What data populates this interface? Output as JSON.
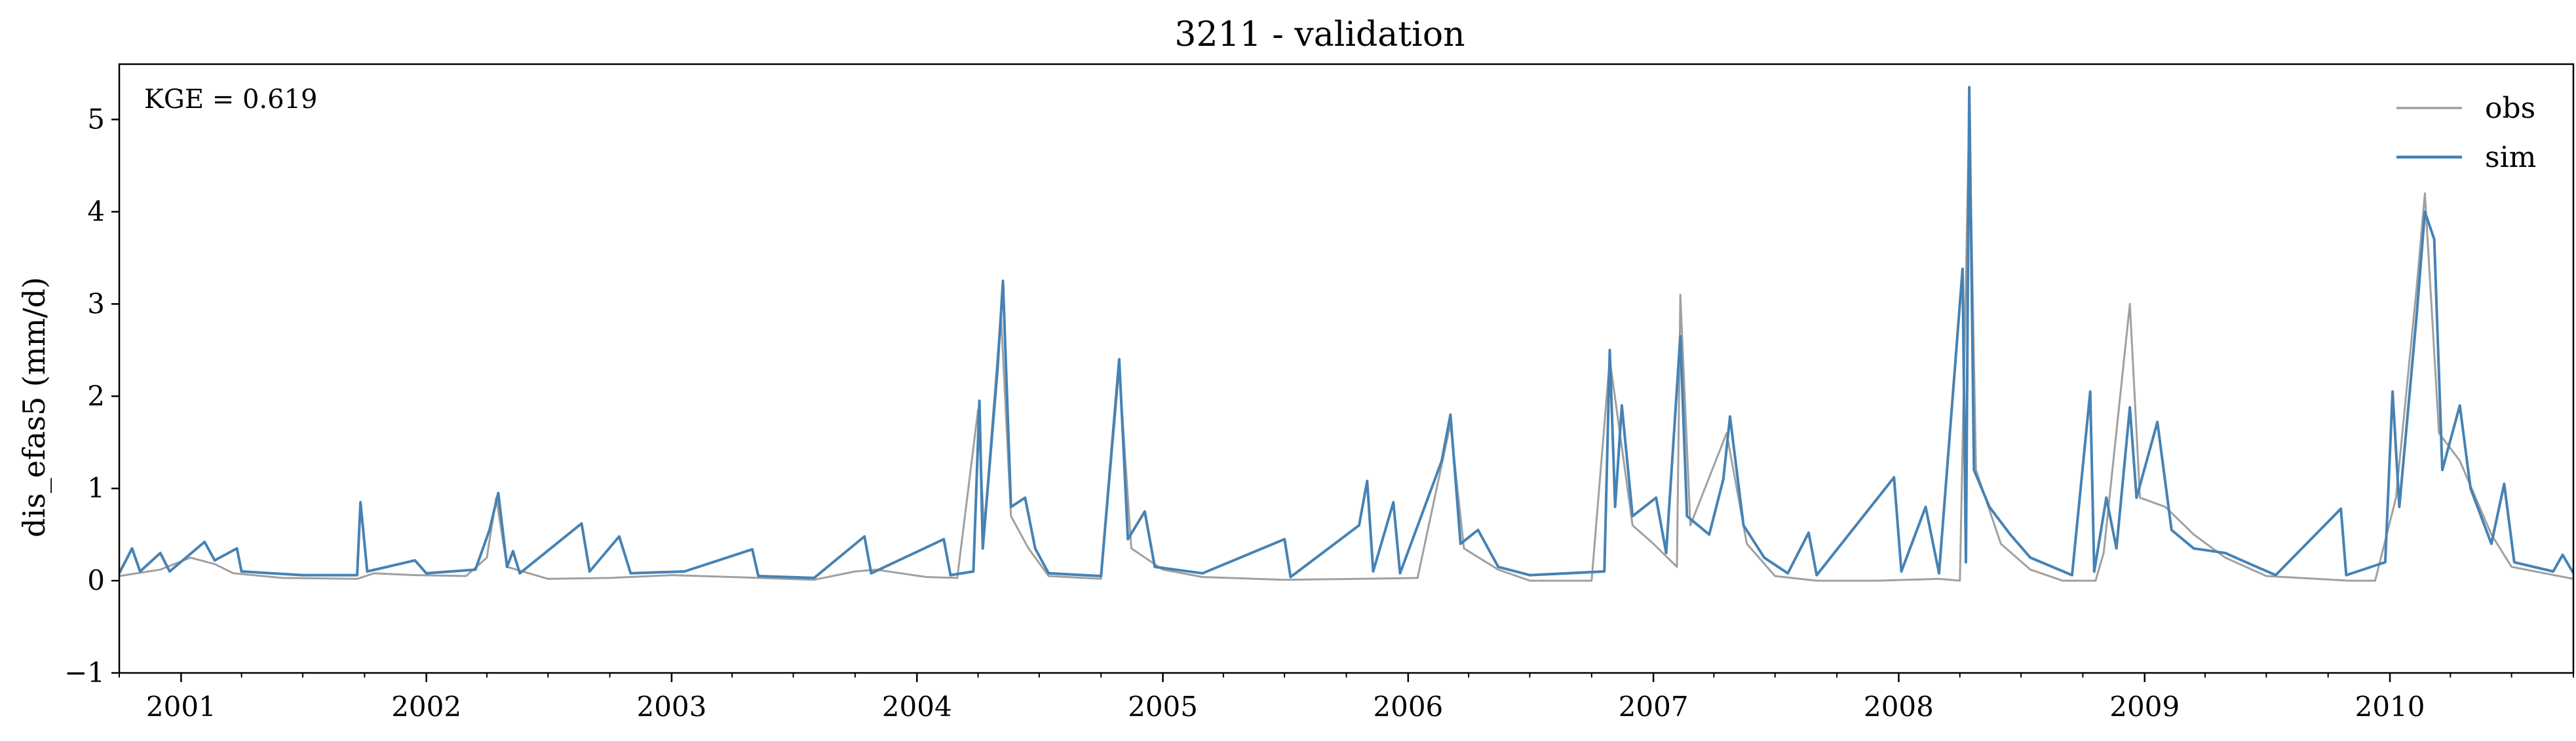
{
  "chart_data": {
    "type": "line",
    "title": "3211 - validation",
    "ylabel": "dis_efas5 (mm/d)",
    "xlabel": "",
    "annotation": "KGE = 0.619",
    "xlim": [
      "2000-10-01",
      "2010-10-01"
    ],
    "ylim": [
      -1,
      5.6
    ],
    "yticks": [
      -1,
      0,
      1,
      2,
      3,
      4,
      5
    ],
    "ytick_labels": [
      "−1",
      "0",
      "1",
      "2",
      "3",
      "4",
      "5"
    ],
    "xtick_labels": [
      "2001",
      "2002",
      "2003",
      "2004",
      "2005",
      "2006",
      "2007",
      "2008",
      "2009",
      "2010"
    ],
    "xtick_dates": [
      "2001-01-01",
      "2002-01-01",
      "2003-01-01",
      "2004-01-01",
      "2005-01-01",
      "2006-01-01",
      "2007-01-01",
      "2008-01-01",
      "2009-01-01",
      "2010-01-01"
    ],
    "grid": false,
    "legend": "top-right",
    "series": [
      {
        "name": "obs",
        "color": "#a0a0a0",
        "points": [
          [
            "2000-10-01",
            0.05
          ],
          [
            "2000-12-01",
            0.12
          ],
          [
            "2001-01-15",
            0.25
          ],
          [
            "2001-02-20",
            0.18
          ],
          [
            "2001-03-20",
            0.08
          ],
          [
            "2001-06-01",
            0.03
          ],
          [
            "2001-09-20",
            0.02
          ],
          [
            "2001-10-15",
            0.08
          ],
          [
            "2001-12-15",
            0.06
          ],
          [
            "2002-03-01",
            0.05
          ],
          [
            "2002-04-01",
            0.25
          ],
          [
            "2002-04-15",
            0.9
          ],
          [
            "2002-05-01",
            0.15
          ],
          [
            "2002-07-01",
            0.02
          ],
          [
            "2002-10-01",
            0.03
          ],
          [
            "2003-01-01",
            0.06
          ],
          [
            "2003-04-01",
            0.04
          ],
          [
            "2003-08-01",
            0.01
          ],
          [
            "2003-10-01",
            0.1
          ],
          [
            "2003-11-01",
            0.12
          ],
          [
            "2004-01-15",
            0.04
          ],
          [
            "2004-03-01",
            0.03
          ],
          [
            "2004-04-01",
            1.85
          ],
          [
            "2004-04-10",
            0.55
          ],
          [
            "2004-05-05",
            2.9
          ],
          [
            "2004-05-20",
            0.7
          ],
          [
            "2004-06-15",
            0.35
          ],
          [
            "2004-07-15",
            0.05
          ],
          [
            "2004-10-01",
            0.02
          ],
          [
            "2004-10-28",
            2.3
          ],
          [
            "2004-11-15",
            0.35
          ],
          [
            "2005-01-01",
            0.12
          ],
          [
            "2005-03-01",
            0.04
          ],
          [
            "2005-07-01",
            0.01
          ],
          [
            "2005-10-20",
            0.02
          ],
          [
            "2006-01-15",
            0.03
          ],
          [
            "2006-03-05",
            1.7
          ],
          [
            "2006-03-25",
            0.35
          ],
          [
            "2006-05-15",
            0.12
          ],
          [
            "2006-07-01",
            0.0
          ],
          [
            "2006-10-01",
            0.0
          ],
          [
            "2006-10-28",
            2.4
          ],
          [
            "2006-12-01",
            0.6
          ],
          [
            "2007-01-01",
            0.4
          ],
          [
            "2007-02-05",
            0.15
          ],
          [
            "2007-02-10",
            3.1
          ],
          [
            "2007-02-25",
            0.6
          ],
          [
            "2007-04-20",
            1.6
          ],
          [
            "2007-05-20",
            0.4
          ],
          [
            "2007-07-01",
            0.05
          ],
          [
            "2007-09-01",
            0.0
          ],
          [
            "2007-12-01",
            0.0
          ],
          [
            "2008-03-01",
            0.02
          ],
          [
            "2008-04-01",
            0.0
          ],
          [
            "2008-04-15",
            5.1
          ],
          [
            "2008-04-25",
            1.2
          ],
          [
            "2008-06-01",
            0.4
          ],
          [
            "2008-07-15",
            0.12
          ],
          [
            "2008-09-01",
            0.0
          ],
          [
            "2008-10-20",
            0.0
          ],
          [
            "2008-11-01",
            0.3
          ],
          [
            "2008-12-10",
            3.0
          ],
          [
            "2008-12-25",
            0.9
          ],
          [
            "2009-02-01",
            0.8
          ],
          [
            "2009-03-15",
            0.5
          ],
          [
            "2009-05-01",
            0.25
          ],
          [
            "2009-07-01",
            0.05
          ],
          [
            "2009-11-01",
            0.0
          ],
          [
            "2009-12-10",
            0.0
          ],
          [
            "2010-01-10",
            0.9
          ],
          [
            "2010-02-10",
            3.2
          ],
          [
            "2010-02-22",
            4.2
          ],
          [
            "2010-03-15",
            1.6
          ],
          [
            "2010-04-15",
            1.3
          ],
          [
            "2010-06-01",
            0.5
          ],
          [
            "2010-07-01",
            0.15
          ],
          [
            "2010-10-01",
            0.02
          ]
        ]
      },
      {
        "name": "sim",
        "color": "#4682b4",
        "points": [
          [
            "2000-10-01",
            0.08
          ],
          [
            "2000-10-20",
            0.35
          ],
          [
            "2000-11-01",
            0.1
          ],
          [
            "2000-12-01",
            0.3
          ],
          [
            "2000-12-15",
            0.1
          ],
          [
            "2001-02-05",
            0.42
          ],
          [
            "2001-02-20",
            0.22
          ],
          [
            "2001-03-25",
            0.35
          ],
          [
            "2001-04-01",
            0.1
          ],
          [
            "2001-07-01",
            0.06
          ],
          [
            "2001-09-20",
            0.06
          ],
          [
            "2001-09-25",
            0.85
          ],
          [
            "2001-10-05",
            0.1
          ],
          [
            "2001-12-15",
            0.22
          ],
          [
            "2002-01-01",
            0.08
          ],
          [
            "2002-03-15",
            0.12
          ],
          [
            "2002-04-05",
            0.55
          ],
          [
            "2002-04-18",
            0.95
          ],
          [
            "2002-05-01",
            0.15
          ],
          [
            "2002-05-10",
            0.32
          ],
          [
            "2002-05-20",
            0.08
          ],
          [
            "2002-08-20",
            0.62
          ],
          [
            "2002-09-01",
            0.1
          ],
          [
            "2002-10-15",
            0.48
          ],
          [
            "2002-11-01",
            0.08
          ],
          [
            "2003-01-20",
            0.1
          ],
          [
            "2003-05-01",
            0.34
          ],
          [
            "2003-05-10",
            0.05
          ],
          [
            "2003-08-01",
            0.03
          ],
          [
            "2003-10-15",
            0.48
          ],
          [
            "2003-10-25",
            0.08
          ],
          [
            "2004-02-10",
            0.45
          ],
          [
            "2004-02-20",
            0.06
          ],
          [
            "2004-03-25",
            0.1
          ],
          [
            "2004-04-03",
            1.95
          ],
          [
            "2004-04-08",
            0.35
          ],
          [
            "2004-04-30",
            2.3
          ],
          [
            "2004-05-08",
            3.25
          ],
          [
            "2004-05-20",
            0.8
          ],
          [
            "2004-06-10",
            0.9
          ],
          [
            "2004-06-25",
            0.35
          ],
          [
            "2004-07-15",
            0.08
          ],
          [
            "2004-10-01",
            0.05
          ],
          [
            "2004-10-28",
            2.4
          ],
          [
            "2004-11-10",
            0.45
          ],
          [
            "2004-12-05",
            0.75
          ],
          [
            "2004-12-20",
            0.15
          ],
          [
            "2005-03-01",
            0.08
          ],
          [
            "2005-07-01",
            0.45
          ],
          [
            "2005-07-10",
            0.04
          ],
          [
            "2005-10-20",
            0.6
          ],
          [
            "2005-11-01",
            1.08
          ],
          [
            "2005-11-10",
            0.1
          ],
          [
            "2005-12-10",
            0.85
          ],
          [
            "2005-12-20",
            0.08
          ],
          [
            "2006-02-20",
            1.3
          ],
          [
            "2006-03-05",
            1.8
          ],
          [
            "2006-03-20",
            0.4
          ],
          [
            "2006-04-15",
            0.55
          ],
          [
            "2006-05-15",
            0.15
          ],
          [
            "2006-07-01",
            0.06
          ],
          [
            "2006-10-20",
            0.1
          ],
          [
            "2006-10-28",
            2.5
          ],
          [
            "2006-11-05",
            0.8
          ],
          [
            "2006-11-15",
            1.9
          ],
          [
            "2006-12-01",
            0.7
          ],
          [
            "2007-01-05",
            0.9
          ],
          [
            "2007-01-20",
            0.3
          ],
          [
            "2007-02-10",
            2.65
          ],
          [
            "2007-02-20",
            0.7
          ],
          [
            "2007-03-25",
            0.5
          ],
          [
            "2007-04-15",
            1.1
          ],
          [
            "2007-04-25",
            1.78
          ],
          [
            "2007-05-15",
            0.6
          ],
          [
            "2007-06-15",
            0.25
          ],
          [
            "2007-07-20",
            0.08
          ],
          [
            "2007-08-20",
            0.52
          ],
          [
            "2007-09-01",
            0.06
          ],
          [
            "2007-12-25",
            1.12
          ],
          [
            "2008-01-05",
            0.1
          ],
          [
            "2008-02-10",
            0.8
          ],
          [
            "2008-03-01",
            0.08
          ],
          [
            "2008-04-05",
            3.38
          ],
          [
            "2008-04-10",
            0.2
          ],
          [
            "2008-04-15",
            5.35
          ],
          [
            "2008-04-22",
            1.2
          ],
          [
            "2008-05-15",
            0.8
          ],
          [
            "2008-06-15",
            0.5
          ],
          [
            "2008-07-15",
            0.25
          ],
          [
            "2008-09-15",
            0.06
          ],
          [
            "2008-10-12",
            2.05
          ],
          [
            "2008-10-18",
            0.1
          ],
          [
            "2008-11-05",
            0.9
          ],
          [
            "2008-11-20",
            0.35
          ],
          [
            "2008-12-10",
            1.88
          ],
          [
            "2008-12-20",
            0.9
          ],
          [
            "2009-01-20",
            1.72
          ],
          [
            "2009-02-10",
            0.55
          ],
          [
            "2009-03-15",
            0.35
          ],
          [
            "2009-05-01",
            0.3
          ],
          [
            "2009-06-01",
            0.2
          ],
          [
            "2009-07-15",
            0.06
          ],
          [
            "2009-10-20",
            0.78
          ],
          [
            "2009-10-28",
            0.06
          ],
          [
            "2009-12-25",
            0.2
          ],
          [
            "2010-01-05",
            2.05
          ],
          [
            "2010-01-15",
            0.8
          ],
          [
            "2010-02-10",
            2.9
          ],
          [
            "2010-02-22",
            4.0
          ],
          [
            "2010-03-08",
            3.7
          ],
          [
            "2010-03-20",
            1.2
          ],
          [
            "2010-04-15",
            1.9
          ],
          [
            "2010-05-01",
            1.0
          ],
          [
            "2010-06-01",
            0.4
          ],
          [
            "2010-06-20",
            1.05
          ],
          [
            "2010-07-05",
            0.2
          ],
          [
            "2010-09-01",
            0.1
          ],
          [
            "2010-09-15",
            0.28
          ],
          [
            "2010-10-01",
            0.08
          ]
        ]
      }
    ]
  }
}
